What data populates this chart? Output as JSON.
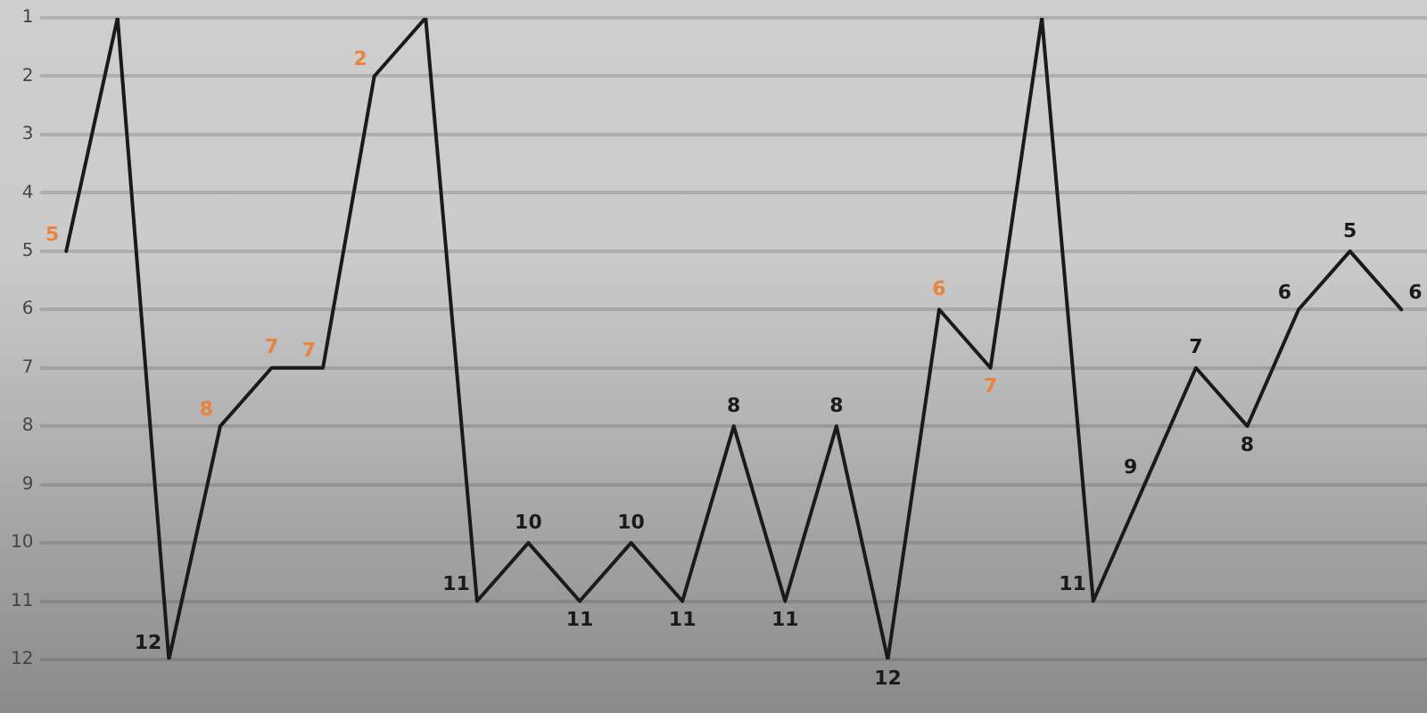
{
  "chart_data": {
    "type": "line",
    "categories": [
      null,
      null,
      null,
      null,
      null,
      null,
      null,
      null,
      null,
      null,
      null,
      null,
      null,
      null,
      null,
      null,
      null,
      null,
      null,
      null,
      null,
      null,
      null,
      null,
      null,
      null,
      null
    ],
    "series": [
      {
        "color": "#1a1a1a",
        "values": [
          5,
          1,
          12,
          8,
          7,
          7,
          2,
          1,
          11,
          10,
          11,
          10,
          11,
          8,
          11,
          8,
          12,
          6,
          7,
          1,
          11,
          9,
          7,
          8,
          6,
          5,
          6
        ],
        "value_labels": [
          "5",
          null,
          "12",
          "8",
          "7",
          "7",
          "2",
          null,
          "11",
          "10",
          "11",
          "10",
          "11",
          "8",
          "11",
          "8",
          "12",
          "6",
          "7",
          null,
          "11",
          "9",
          "7",
          "8",
          "6",
          "5",
          "6"
        ],
        "colors": [
          "#e8843c",
          "#1a1a1a",
          "#1a1a1a",
          "#e8843c",
          "#e8843c",
          "#e8843c",
          "#e8843c",
          "#1a1a1a",
          "#1a1a1a",
          "#1a1a1a",
          "#1a1a1a",
          "#1a1a1a",
          "#1a1a1a",
          "#1a1a1a",
          "#1a1a1a",
          "#1a1a1a",
          "#1a1a1a",
          "#e8843c",
          "#e8843c",
          "#1a1a1a",
          "#1a1a1a",
          "#1a1a1a",
          "#1a1a1a",
          "#1a1a1a",
          "#1a1a1a",
          "#1a1a1a",
          "#1a1a1a"
        ]
      }
    ],
    "ylim": [
      12,
      1
    ],
    "yticks": [
      1,
      2,
      3,
      4,
      5,
      6,
      7,
      8,
      9,
      10,
      11,
      12
    ],
    "grid": "y",
    "tick_labels": "y",
    "legend": false,
    "marker": "none",
    "line_style": "solid"
  }
}
